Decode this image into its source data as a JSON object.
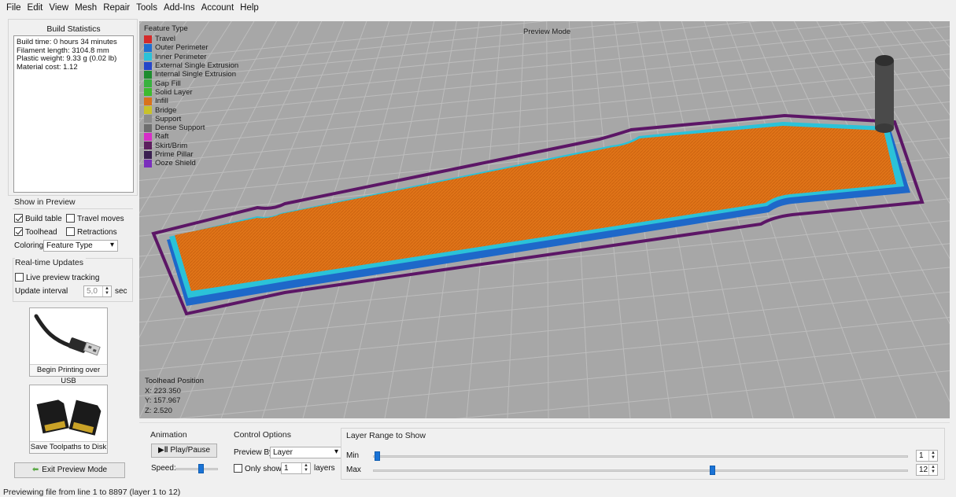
{
  "menu": [
    "File",
    "Edit",
    "View",
    "Mesh",
    "Repair",
    "Tools",
    "Add-Ins",
    "Account",
    "Help"
  ],
  "build_stats": {
    "title": "Build Statistics",
    "lines": [
      "Build time: 0 hours 34 minutes",
      "Filament length: 3104.8 mm",
      "Plastic weight: 9.33 g (0.02 lb)",
      "Material cost: 1.12"
    ]
  },
  "show_in_preview": {
    "title": "Show in Preview",
    "build_table": {
      "label": "Build table",
      "checked": true
    },
    "travel_moves": {
      "label": "Travel moves",
      "checked": false
    },
    "toolhead": {
      "label": "Toolhead",
      "checked": true
    },
    "retractions": {
      "label": "Retractions",
      "checked": false
    },
    "coloring_label": "Coloring",
    "coloring_value": "Feature Type"
  },
  "realtime": {
    "title": "Real-time Updates",
    "live_label": "Live preview tracking",
    "interval_label": "Update interval",
    "interval_value": "5,0",
    "interval_unit": "sec"
  },
  "usb_button": {
    "label": "Begin Printing over USB",
    "icon": "usb-cable-icon"
  },
  "disk_button": {
    "label": "Save Toolpaths to Disk",
    "icon": "sd-card-icon"
  },
  "exit_button": {
    "label": "Exit Preview Mode",
    "icon": "back-arrow-icon"
  },
  "viewport": {
    "mode": "Preview Mode",
    "legend_title": "Feature Type",
    "legend": [
      {
        "label": "Travel",
        "color": "#d42a2a"
      },
      {
        "label": "Outer Perimeter",
        "color": "#1f6fd0"
      },
      {
        "label": "Inner Perimeter",
        "color": "#2bc2d8"
      },
      {
        "label": "External Single Extrusion",
        "color": "#2546c9"
      },
      {
        "label": "Internal Single Extrusion",
        "color": "#1e8c2e"
      },
      {
        "label": "Gap Fill",
        "color": "#38b23e"
      },
      {
        "label": "Solid Layer",
        "color": "#3dbb2f"
      },
      {
        "label": "Infill",
        "color": "#d9721c"
      },
      {
        "label": "Bridge",
        "color": "#c9c22a"
      },
      {
        "label": "Support",
        "color": "#8c8c8c"
      },
      {
        "label": "Dense Support",
        "color": "#6e6e6e"
      },
      {
        "label": "Raft",
        "color": "#d62ec7"
      },
      {
        "label": "Skirt/Brim",
        "color": "#5c1f5e"
      },
      {
        "label": "Prime Pillar",
        "color": "#3a1f50"
      },
      {
        "label": "Ooze Shield",
        "color": "#7a2fbc"
      }
    ],
    "toolhead_title": "Toolhead Position",
    "toolhead_x": "X: 223.350",
    "toolhead_y": "Y: 157.967",
    "toolhead_z": "Z: 2.520"
  },
  "animation": {
    "title": "Animation",
    "play_label": "Play/Pause",
    "speed_label": "Speed:",
    "speed": 0.6
  },
  "control_options": {
    "title": "Control Options",
    "preview_by_label": "Preview By",
    "preview_by_value": "Layer",
    "only_show_label": "Only show",
    "only_show_value": "1",
    "layers_label": "layers"
  },
  "layer_range": {
    "title": "Layer Range to Show",
    "min_label": "Min",
    "max_label": "Max",
    "min_value": "1",
    "max_value": "12",
    "total_layers": 12
  },
  "status": "Previewing file from line 1 to 8897 (layer 1 to 12)"
}
